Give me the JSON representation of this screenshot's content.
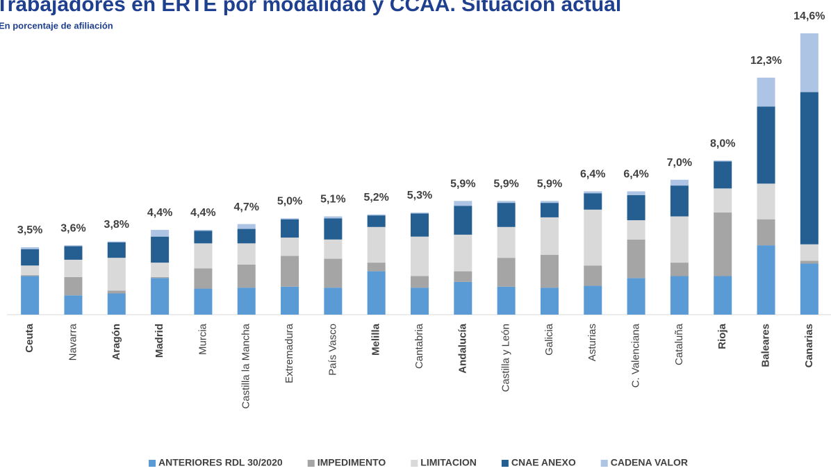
{
  "chart_data": {
    "type": "stacked_bar",
    "title": "Trabajadores en ERTE por modalidad y CCAA. Situación actual",
    "subtitle": "En porcentaje de afiliación",
    "categories": [
      "Ceuta",
      "Navarra",
      "Aragón",
      "Madrid",
      "Murcia",
      "Castilla la Mancha",
      "Extremadura",
      "País Vasco",
      "Melilla",
      "Cantabria",
      "Andalucía",
      "Castilla y León",
      "Galicia",
      "Asturias",
      "C. Valenciana",
      "Cataluña",
      "Rioja",
      "Baleares",
      "Canarias"
    ],
    "category_bold": [
      true,
      false,
      true,
      true,
      false,
      false,
      false,
      false,
      true,
      false,
      true,
      false,
      false,
      false,
      false,
      false,
      true,
      true,
      true
    ],
    "series": [
      {
        "name": "ANTERIORES RDL 30/2020",
        "color": "#5b9bd5",
        "values": [
          2.0,
          1.0,
          1.1,
          1.9,
          1.35,
          1.4,
          1.45,
          1.4,
          2.25,
          1.4,
          1.7,
          1.45,
          1.4,
          1.5,
          1.9,
          2.0,
          2.0,
          3.6,
          2.65
        ]
      },
      {
        "name": "IMPEDIMENTO",
        "color": "#a5a5a5",
        "values": [
          0.05,
          0.95,
          0.15,
          0.05,
          1.05,
          1.2,
          1.6,
          1.5,
          0.45,
          0.6,
          0.55,
          1.5,
          1.7,
          1.05,
          2.0,
          0.7,
          3.3,
          1.35,
          0.15
        ]
      },
      {
        "name": "LIMITACION",
        "color": "#d9d9d9",
        "values": [
          0.5,
          0.9,
          1.7,
          0.75,
          1.3,
          1.1,
          0.95,
          1.0,
          1.85,
          2.05,
          1.9,
          1.6,
          1.95,
          2.9,
          1.0,
          2.4,
          1.25,
          1.85,
          0.85
        ]
      },
      {
        "name": "CNAE ANEXO",
        "color": "#255e91",
        "values": [
          0.85,
          0.7,
          0.8,
          1.35,
          0.65,
          0.75,
          0.95,
          1.1,
          0.6,
          1.2,
          1.5,
          1.25,
          0.75,
          0.85,
          1.3,
          1.6,
          1.4,
          4.0,
          7.9
        ]
      },
      {
        "name": "CADENA VALOR",
        "color": "#adc4e4",
        "values": [
          0.1,
          0.05,
          0.05,
          0.35,
          0.05,
          0.25,
          0.05,
          0.1,
          0.05,
          0.05,
          0.25,
          0.1,
          0.1,
          0.1,
          0.2,
          0.3,
          0.05,
          1.5,
          3.05
        ]
      }
    ],
    "totals": [
      3.5,
      3.6,
      3.8,
      4.4,
      4.4,
      4.7,
      5.0,
      5.1,
      5.2,
      5.3,
      5.9,
      5.9,
      5.9,
      6.4,
      6.4,
      7.0,
      8.0,
      12.3,
      14.6
    ],
    "total_labels": [
      "3,5%",
      "3,6%",
      "3,8%",
      "4,4%",
      "4,4%",
      "4,7%",
      "5,0%",
      "5,1%",
      "5,2%",
      "5,3%",
      "5,9%",
      "5,9%",
      "5,9%",
      "6,4%",
      "6,4%",
      "7,0%",
      "8,0%",
      "12,3%",
      "14,6%"
    ]
  }
}
